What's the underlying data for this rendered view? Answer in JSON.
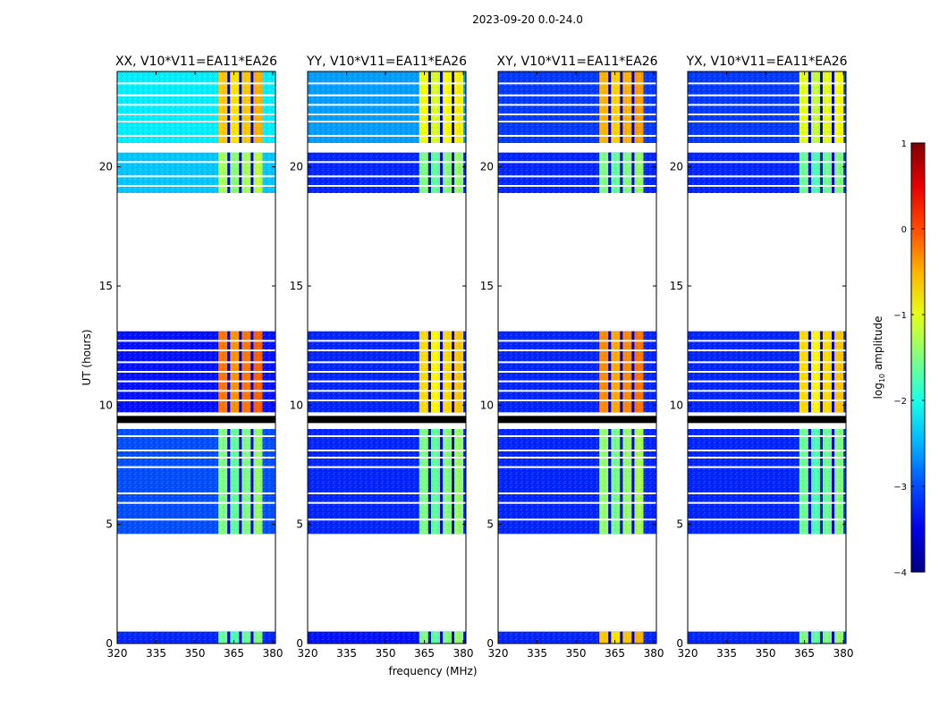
{
  "figure": {
    "suptitle": "2023-09-20 0.0-24.0",
    "xlabel": "frequency (MHz)",
    "ylabel": "UT (hours)"
  },
  "chart_data": {
    "type": "heatmap",
    "x_range": [
      320,
      381
    ],
    "y_range": [
      0,
      24
    ],
    "x_ticks": [
      320,
      335,
      350,
      365,
      380
    ],
    "y_ticks": [
      0,
      5,
      10,
      15,
      20
    ],
    "time_blocks": [
      {
        "start": 0.0,
        "end": 0.5
      },
      {
        "start": 4.6,
        "end": 9.0
      },
      {
        "start": 9.7,
        "end": 13.1
      },
      {
        "start": 18.9,
        "end": 20.6
      },
      {
        "start": 21.0,
        "end": 24.0
      }
    ],
    "black_bands": [
      [
        9.25,
        9.55
      ]
    ],
    "gap_lines": [
      5.2,
      5.9,
      6.3,
      7.4,
      7.8,
      8.1,
      8.7,
      9.1,
      10.2,
      10.6,
      11.0,
      11.4,
      11.8,
      12.3,
      12.7,
      19.2,
      19.6,
      20.2,
      21.3,
      21.9,
      22.2,
      22.6,
      23.0,
      23.5
    ],
    "band_ranges_mhz": [
      [
        359,
        362.5
      ],
      [
        363.5,
        367
      ],
      [
        368,
        371.5
      ],
      [
        372.5,
        376
      ]
    ],
    "panels": [
      {
        "title": "XX, V10*V11=EA11*EA26",
        "band_start": 359,
        "band_end": 376,
        "bg_levels": [
          -3.2,
          -3.0,
          -3.3,
          -2.4,
          -2.2
        ],
        "band_levels": [
          -1.6,
          -1.5,
          -0.2,
          -1.3,
          -0.6
        ]
      },
      {
        "title": "YY, V10*V11=EA11*EA26",
        "band_start": 363,
        "band_end": 380,
        "bg_levels": [
          -3.3,
          -3.2,
          -3.2,
          -3.2,
          -2.6
        ],
        "band_levels": [
          -1.5,
          -1.5,
          -0.7,
          -1.5,
          -0.9
        ]
      },
      {
        "title": "XY, V10*V11=EA11*EA26",
        "band_start": 359,
        "band_end": 376,
        "bg_levels": [
          -3.2,
          -3.2,
          -3.2,
          -3.2,
          -3.1
        ],
        "band_levels": [
          -0.6,
          -1.4,
          -0.3,
          -1.5,
          -0.5
        ]
      },
      {
        "title": "YX, V10*V11=EA11*EA26",
        "band_start": 363,
        "band_end": 380,
        "bg_levels": [
          -3.2,
          -3.2,
          -3.2,
          -3.2,
          -3.1
        ],
        "band_levels": [
          -1.5,
          -1.6,
          -0.7,
          -1.6,
          -1.0
        ]
      }
    ],
    "colorbar": {
      "label": "log",
      "label_subscript": "10",
      "label_suffix": " amplitude",
      "range": [
        -4,
        1
      ],
      "ticks": [
        "1",
        "0",
        "−1",
        "−2",
        "−3",
        "−4"
      ],
      "tick_values": [
        1,
        0,
        -1,
        -2,
        -3,
        -4
      ],
      "colormap": "jet"
    }
  }
}
